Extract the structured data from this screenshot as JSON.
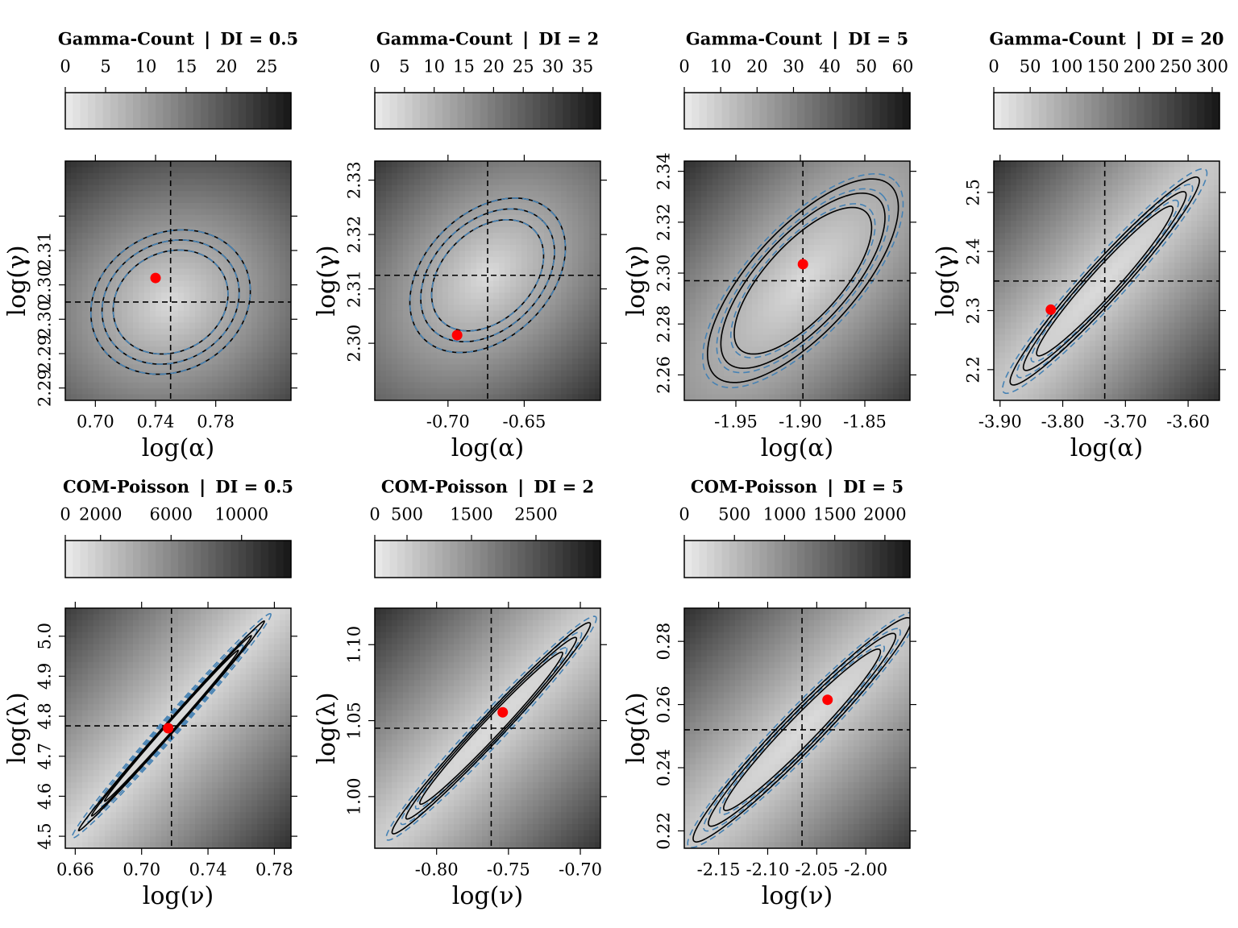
{
  "colors": {
    "contour": "#000000",
    "approx_contour": "#4682b4",
    "point": "#ff0000",
    "ref_lines": "#000000",
    "shade_light": "#e6e6e6",
    "shade_dark": "#1a1a1a"
  },
  "chart_data": [
    {
      "type": "heatmap",
      "title": "Gamma-Count ❘ DI = 0.5",
      "xlabel": "log(α)",
      "ylabel": "log(γ)",
      "xlim": [
        0.68,
        0.83
      ],
      "ylim": [
        2.2857,
        2.3205
      ],
      "xticks": [
        0.7,
        0.74,
        0.78
      ],
      "xtick_labels": [
        "0.70",
        "0.74",
        "0.78"
      ],
      "yticks": [
        2.2875,
        2.2925,
        2.2975,
        2.3025,
        2.3075,
        2.3125
      ],
      "ytick_labels": [
        "2.29",
        "2.29",
        "2.30",
        "2.30",
        "2.31",
        ""
      ],
      "colorbar": {
        "ticks": [
          0,
          5,
          10,
          15,
          20,
          25
        ],
        "tick_labels": [
          "0",
          "5",
          "10",
          "15",
          "20",
          "25"
        ],
        "range": [
          0,
          28
        ]
      },
      "center": [
        0.75,
        2.3
      ],
      "point": [
        0.74,
        2.3035
      ],
      "ellipse": {
        "a": 0.053,
        "b": 0.0105,
        "rho": 0.15
      },
      "contour_levels": [
        0.72,
        0.86,
        1.0
      ],
      "approx_scale": 1.0
    },
    {
      "type": "heatmap",
      "title": "Gamma-Count ❘ DI = 2",
      "xlabel": "log(α)",
      "ylabel": "log(γ)",
      "xlim": [
        -0.748,
        -0.6
      ],
      "ylim": [
        2.2895,
        2.3335
      ],
      "xticks": [
        -0.7,
        -0.65
      ],
      "xtick_labels": [
        "-0.70",
        "-0.65"
      ],
      "yticks": [
        2.3,
        2.31,
        2.32,
        2.33
      ],
      "ytick_labels": [
        "2.30",
        "2.31",
        "2.32",
        "2.33"
      ],
      "colorbar": {
        "ticks": [
          0,
          5,
          10,
          15,
          20,
          25,
          30,
          35
        ],
        "tick_labels": [
          "0",
          "5",
          "10",
          "15",
          "20",
          "25",
          "30",
          "35"
        ],
        "range": [
          0,
          38
        ]
      },
      "center": [
        -0.674,
        2.3125
      ],
      "point": [
        -0.694,
        2.3015
      ],
      "ellipse": {
        "a": 0.051,
        "b": 0.0142,
        "rho": 0.35
      },
      "contour_levels": [
        0.72,
        0.86,
        1.0
      ],
      "approx_scale": 1.0
    },
    {
      "type": "heatmap",
      "title": "Gamma-Count ❘ DI = 5",
      "xlabel": "log(α)",
      "ylabel": "log(γ)",
      "xlim": [
        -1.99,
        -1.815
      ],
      "ylim": [
        2.25,
        2.344
      ],
      "xticks": [
        -1.95,
        -1.9,
        -1.85
      ],
      "xtick_labels": [
        "-1.95",
        "-1.90",
        "-1.85"
      ],
      "yticks": [
        2.26,
        2.28,
        2.3,
        2.32,
        2.34
      ],
      "ytick_labels": [
        "2.26",
        "2.28",
        "2.30",
        "2.32",
        "2.34"
      ],
      "colorbar": {
        "ticks": [
          0,
          10,
          20,
          30,
          40,
          50,
          60
        ],
        "tick_labels": [
          "0",
          "10",
          "20",
          "30",
          "40",
          "50",
          "60"
        ],
        "range": [
          0,
          62
        ]
      },
      "center": [
        -1.898,
        2.297
      ],
      "point": [
        -1.898,
        2.3035
      ],
      "ellipse": {
        "a": 0.074,
        "b": 0.04,
        "rho": 0.72
      },
      "contour_levels": [
        0.72,
        0.86,
        1.0
      ],
      "approx_scale": 1.05
    },
    {
      "type": "heatmap",
      "title": "Gamma-Count ❘ DI = 20",
      "xlabel": "log(α)",
      "ylabel": "log(γ)",
      "xlim": [
        -3.91,
        -3.55
      ],
      "ylim": [
        2.148,
        2.553
      ],
      "xticks": [
        -3.9,
        -3.8,
        -3.7,
        -3.6
      ],
      "xtick_labels": [
        "-3.90",
        "-3.80",
        "-3.70",
        "-3.60"
      ],
      "yticks": [
        2.2,
        2.3,
        2.4,
        2.5
      ],
      "ytick_labels": [
        "2.2",
        "2.3",
        "2.4",
        "2.5"
      ],
      "colorbar": {
        "ticks": [
          0,
          50,
          100,
          150,
          200,
          250,
          300
        ],
        "tick_labels": [
          "0",
          "50",
          "100",
          "150",
          "200",
          "250",
          "300"
        ],
        "range": [
          0,
          310
        ]
      },
      "center": [
        -3.733,
        2.35
      ],
      "point": [
        -3.819,
        2.3015
      ],
      "ellipse": {
        "a": 0.151,
        "b": 0.176,
        "rho": 0.965
      },
      "contour_levels": [
        0.72,
        0.86,
        1.0
      ],
      "approx_scale": 1.08
    },
    {
      "type": "heatmap",
      "title": "COM-Poisson ❘ DI = 0.5",
      "xlabel": "log(ν)",
      "ylabel": "log(λ)",
      "xlim": [
        0.654,
        0.79
      ],
      "ylim": [
        4.47,
        5.07
      ],
      "xticks": [
        0.66,
        0.7,
        0.74,
        0.78
      ],
      "xtick_labels": [
        "0.66",
        "0.70",
        "0.74",
        "0.78"
      ],
      "yticks": [
        4.5,
        4.6,
        4.7,
        4.8,
        4.9,
        5.0
      ],
      "ytick_labels": [
        "4.5",
        "4.6",
        "4.7",
        "4.8",
        "4.9",
        "5.0"
      ],
      "colorbar": {
        "ticks": [
          0,
          2000,
          6000,
          10000
        ],
        "tick_labels": [
          "0",
          "2000",
          "6000",
          "10000"
        ],
        "range": [
          0,
          12800
        ]
      },
      "center": [
        0.718,
        4.776
      ],
      "point": [
        0.716,
        4.77
      ],
      "ellipse": {
        "a": 0.056,
        "b": 0.262,
        "rho": 0.997
      },
      "contour_levels": [
        0.72,
        0.86,
        1.0
      ],
      "approx_scale": 1.07
    },
    {
      "type": "heatmap",
      "title": "COM-Poisson ❘ DI = 2",
      "xlabel": "log(ν)",
      "ylabel": "log(λ)",
      "xlim": [
        -0.843,
        -0.686
      ],
      "ylim": [
        0.966,
        1.124
      ],
      "xticks": [
        -0.8,
        -0.75,
        -0.7
      ],
      "xtick_labels": [
        "-0.80",
        "-0.75",
        "-0.70"
      ],
      "yticks": [
        1.0,
        1.05,
        1.1
      ],
      "ytick_labels": [
        "1.00",
        "1.05",
        "1.10"
      ],
      "colorbar": {
        "ticks": [
          0,
          500,
          1500,
          2500
        ],
        "tick_labels": [
          "0",
          "500",
          "1500",
          "2500"
        ],
        "range": [
          0,
          3500
        ]
      },
      "center": [
        -0.762,
        1.045
      ],
      "point": [
        -0.754,
        1.0555
      ],
      "ellipse": {
        "a": 0.069,
        "b": 0.0695,
        "rho": 0.985
      },
      "contour_levels": [
        0.72,
        0.86,
        1.0
      ],
      "approx_scale": 1.06
    },
    {
      "type": "heatmap",
      "title": "COM-Poisson ❘ DI = 5",
      "xlabel": "log(ν)",
      "ylabel": "log(λ)",
      "xlim": [
        -2.185,
        -1.955
      ],
      "ylim": [
        0.2145,
        0.2905
      ],
      "xticks": [
        -2.15,
        -2.1,
        -2.05,
        -2.0
      ],
      "xtick_labels": [
        "-2.15",
        "-2.10",
        "-2.05",
        "-2.00"
      ],
      "yticks": [
        0.22,
        0.24,
        0.26,
        0.28
      ],
      "ytick_labels": [
        "0.22",
        "0.24",
        "0.26",
        "0.28"
      ],
      "colorbar": {
        "ticks": [
          0,
          500,
          1000,
          1500,
          2000
        ],
        "tick_labels": [
          "0",
          "500",
          "1000",
          "1500",
          "2000"
        ],
        "range": [
          0,
          2250
        ]
      },
      "center": [
        -2.065,
        0.252
      ],
      "point": [
        -2.039,
        0.2615
      ],
      "ellipse": {
        "a": 0.111,
        "b": 0.0355,
        "rho": 0.97
      },
      "contour_levels": [
        0.72,
        0.86,
        1.0
      ],
      "approx_scale": 1.05
    }
  ]
}
